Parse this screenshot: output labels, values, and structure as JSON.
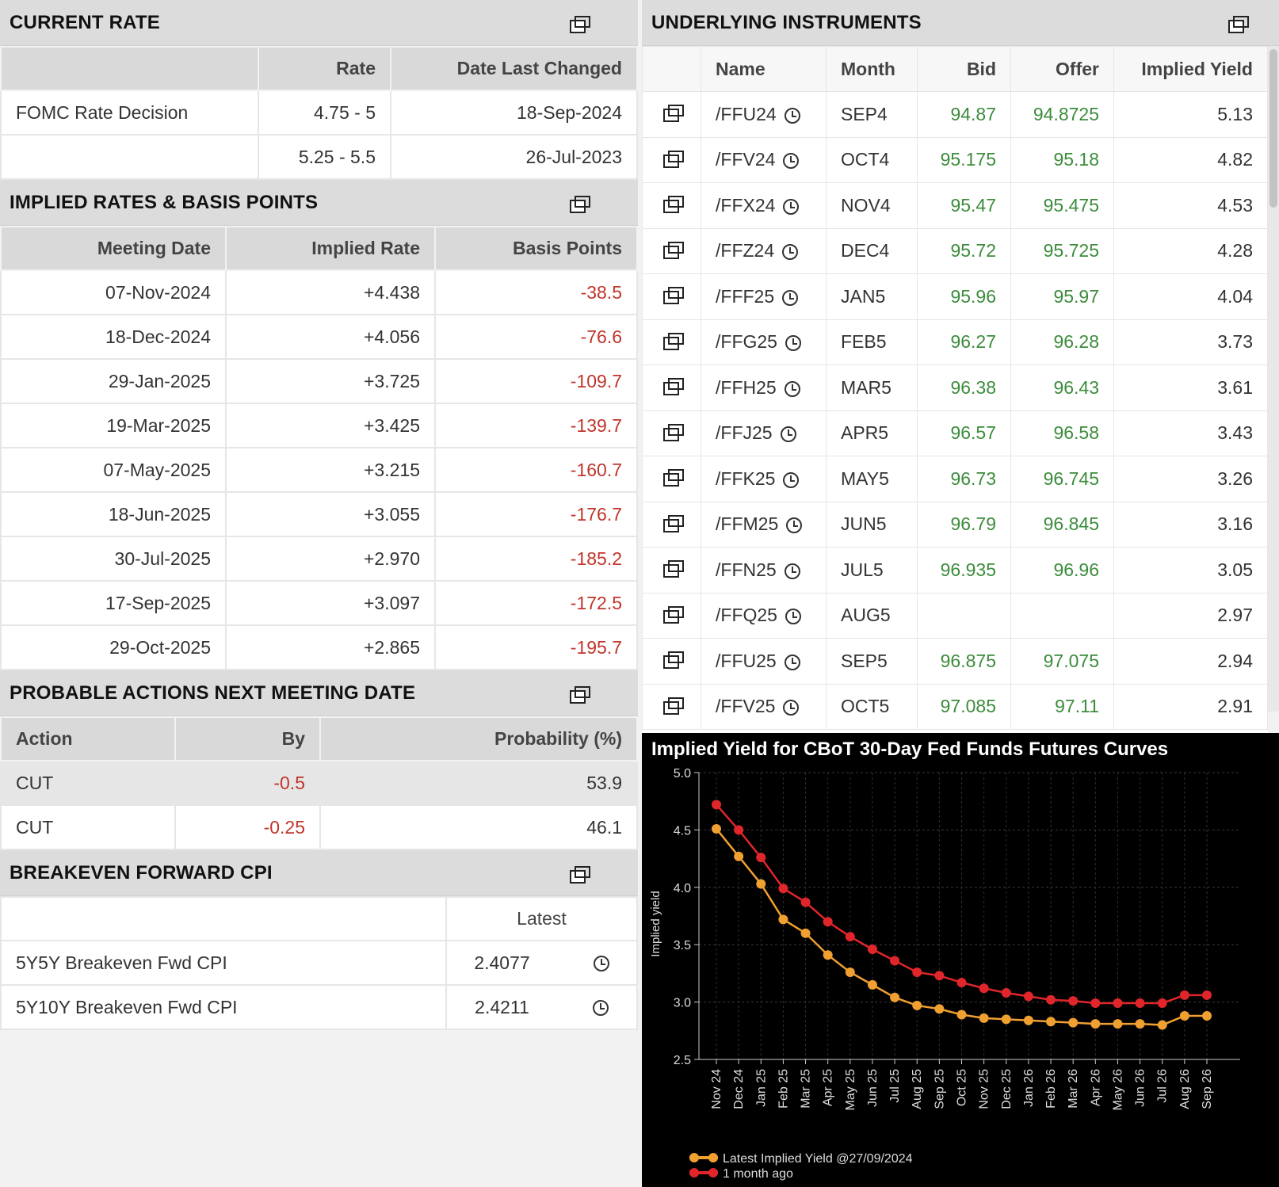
{
  "current_rate": {
    "title": "CURRENT RATE",
    "headers": [
      "",
      "Rate",
      "Date Last Changed"
    ],
    "rows": [
      [
        "FOMC Rate Decision",
        "4.75 - 5",
        "18-Sep-2024"
      ],
      [
        "",
        "5.25 - 5.5",
        "26-Jul-2023"
      ]
    ]
  },
  "implied_rates": {
    "title": "IMPLIED RATES & BASIS POINTS",
    "headers": [
      "Meeting Date",
      "Implied Rate",
      "Basis Points"
    ],
    "rows": [
      [
        "07-Nov-2024",
        "+4.438",
        "-38.5"
      ],
      [
        "18-Dec-2024",
        "+4.056",
        "-76.6"
      ],
      [
        "29-Jan-2025",
        "+3.725",
        "-109.7"
      ],
      [
        "19-Mar-2025",
        "+3.425",
        "-139.7"
      ],
      [
        "07-May-2025",
        "+3.215",
        "-160.7"
      ],
      [
        "18-Jun-2025",
        "+3.055",
        "-176.7"
      ],
      [
        "30-Jul-2025",
        "+2.970",
        "-185.2"
      ],
      [
        "17-Sep-2025",
        "+3.097",
        "-172.5"
      ],
      [
        "29-Oct-2025",
        "+2.865",
        "-195.7"
      ]
    ]
  },
  "probable_actions": {
    "title": "PROBABLE ACTIONS NEXT MEETING DATE",
    "headers": [
      "Action",
      "By",
      "Probability (%)"
    ],
    "rows": [
      [
        "CUT",
        "-0.5",
        "53.9"
      ],
      [
        "CUT",
        "-0.25",
        "46.1"
      ]
    ]
  },
  "breakeven": {
    "title": "BREAKEVEN FORWARD CPI",
    "headers": [
      "",
      "Latest"
    ],
    "rows": [
      [
        "5Y5Y Breakeven Fwd CPI",
        "2.4077"
      ],
      [
        "5Y10Y Breakeven Fwd CPI",
        "2.4211"
      ]
    ]
  },
  "underlying": {
    "title": "UNDERLYING INSTRUMENTS",
    "headers": [
      "",
      "Name",
      "Month",
      "Bid",
      "Offer",
      "Implied Yield"
    ],
    "rows": [
      [
        "/FFU24",
        "SEP4",
        "94.87",
        "94.8725",
        "5.13"
      ],
      [
        "/FFV24",
        "OCT4",
        "95.175",
        "95.18",
        "4.82"
      ],
      [
        "/FFX24",
        "NOV4",
        "95.47",
        "95.475",
        "4.53"
      ],
      [
        "/FFZ24",
        "DEC4",
        "95.72",
        "95.725",
        "4.28"
      ],
      [
        "/FFF25",
        "JAN5",
        "95.96",
        "95.97",
        "4.04"
      ],
      [
        "/FFG25",
        "FEB5",
        "96.27",
        "96.28",
        "3.73"
      ],
      [
        "/FFH25",
        "MAR5",
        "96.38",
        "96.43",
        "3.61"
      ],
      [
        "/FFJ25",
        "APR5",
        "96.57",
        "96.58",
        "3.43"
      ],
      [
        "/FFK25",
        "MAY5",
        "96.73",
        "96.745",
        "3.26"
      ],
      [
        "/FFM25",
        "JUN5",
        "96.79",
        "96.845",
        "3.16"
      ],
      [
        "/FFN25",
        "JUL5",
        "96.935",
        "96.96",
        "3.05"
      ],
      [
        "/FFQ25",
        "AUG5",
        "",
        "",
        "2.97"
      ],
      [
        "/FFU25",
        "SEP5",
        "96.875",
        "97.075",
        "2.94"
      ],
      [
        "/FFV25",
        "OCT5",
        "97.085",
        "97.11",
        "2.91"
      ]
    ]
  },
  "colors": {
    "negative": "#c0352b",
    "positive": "#3c8c3c",
    "series_latest": "#f0a030",
    "series_month_ago": "#e0262a"
  },
  "chart_data": {
    "type": "line",
    "title": "Implied Yield for CBoT 30-Day Fed Funds Futures Curves",
    "xlabel": "",
    "ylabel": "Implied yield",
    "ylim": [
      2.5,
      5.0
    ],
    "yticks": [
      "2.5",
      "3.0",
      "3.5",
      "4.0",
      "4.5",
      "5.0"
    ],
    "grid": true,
    "legend_placement": "bottom",
    "categories": [
      "Nov 24",
      "Dec 24",
      "Jan 25",
      "Feb 25",
      "Mar 25",
      "Apr 25",
      "May 25",
      "Jun 25",
      "Jul 25",
      "Aug 25",
      "Sep 25",
      "Oct 25",
      "Nov 25",
      "Dec 25",
      "Jan 26",
      "Feb 26",
      "Mar 26",
      "Apr 26",
      "May 26",
      "Jun 26",
      "Jul 26",
      "Aug 26",
      "Sep 26"
    ],
    "series": [
      {
        "name": "Latest Implied Yield @27/09/2024",
        "color": "#f0a030",
        "values": [
          4.51,
          4.27,
          4.03,
          3.72,
          3.6,
          3.41,
          3.26,
          3.15,
          3.04,
          2.97,
          2.94,
          2.89,
          2.86,
          2.85,
          2.84,
          2.83,
          2.82,
          2.81,
          2.81,
          2.81,
          2.8,
          2.88,
          2.88
        ]
      },
      {
        "name": "1 month ago",
        "color": "#e0262a",
        "values": [
          4.72,
          4.5,
          4.26,
          3.99,
          3.87,
          3.7,
          3.57,
          3.46,
          3.36,
          3.26,
          3.23,
          3.17,
          3.12,
          3.08,
          3.05,
          3.02,
          3.01,
          2.99,
          2.99,
          2.99,
          2.99,
          3.06,
          3.06
        ]
      }
    ]
  }
}
